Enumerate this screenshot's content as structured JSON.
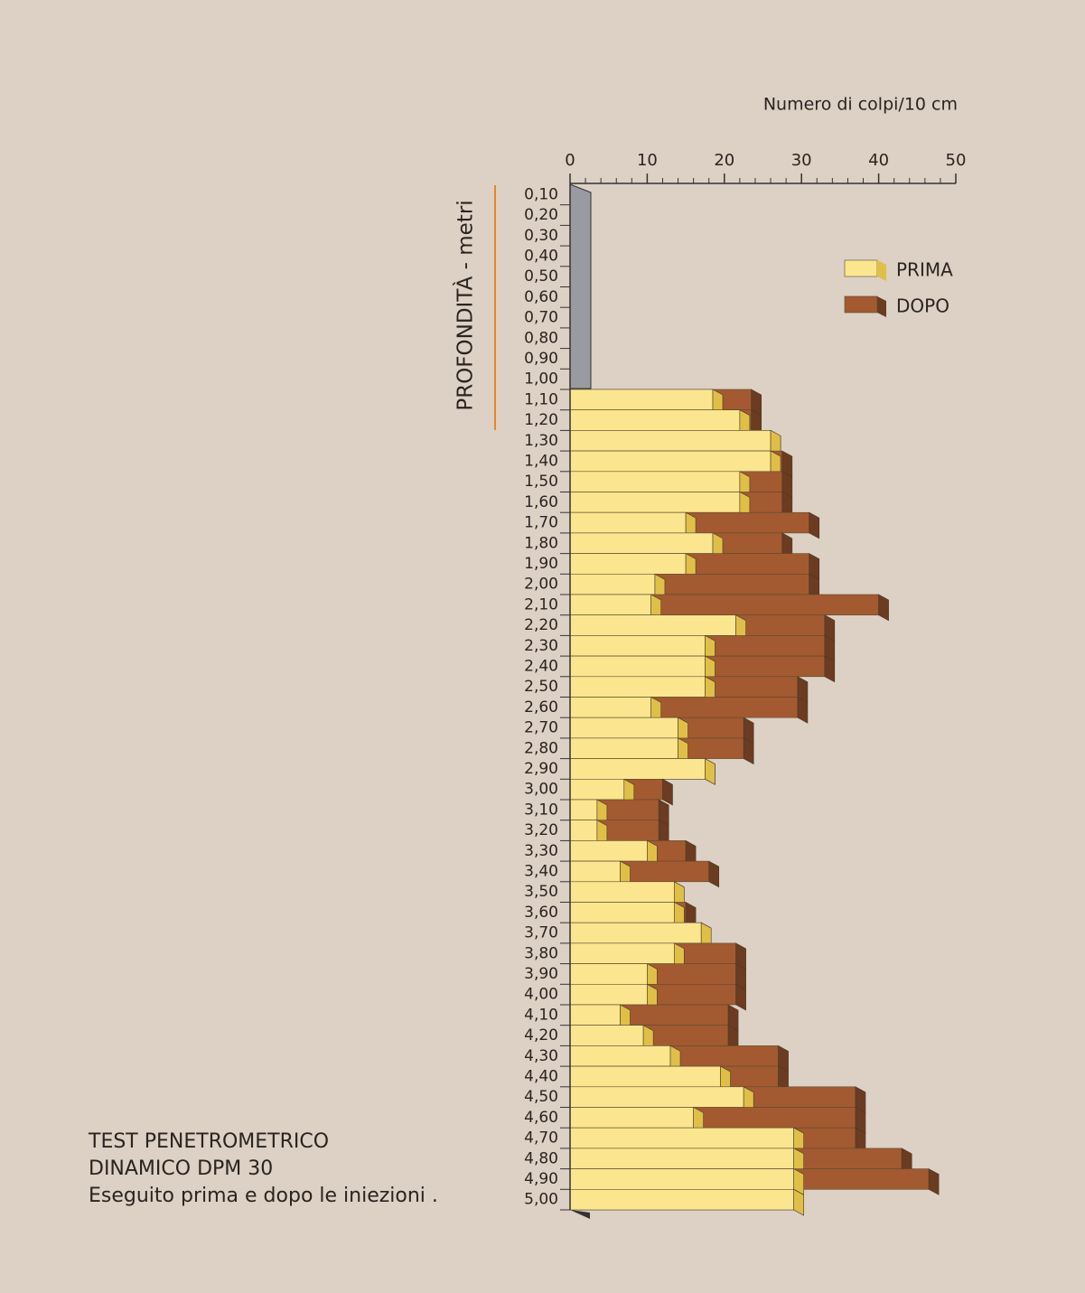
{
  "chart_data": {
    "type": "bar_overlap_horizontal",
    "title_lines": [
      "TEST PENETROMETRICO",
      "DINAMICO DPM 30",
      "Eseguito prima e dopo le iniezioni ."
    ],
    "x_label": "Numero di colpi/10 cm",
    "y_label": "PROFONDITÀ - metri",
    "categories": [
      "0,10",
      "0,20",
      "0,30",
      "0,40",
      "0,50",
      "0,60",
      "0,70",
      "0,80",
      "0,90",
      "1,00",
      "1,10",
      "1,20",
      "1,30",
      "1,40",
      "1,50",
      "1,60",
      "1,70",
      "1,80",
      "1,90",
      "2,00",
      "2,10",
      "2,20",
      "2,30",
      "2,40",
      "2,50",
      "2,60",
      "2,70",
      "2,80",
      "2,90",
      "3,00",
      "3,10",
      "3,20",
      "3,30",
      "3,40",
      "3,50",
      "3,60",
      "3,70",
      "3,80",
      "3,90",
      "4,00",
      "4,10",
      "4,20",
      "4,30",
      "4,40",
      "4,50",
      "4,60",
      "4,70",
      "4,80",
      "4,90",
      "5,00"
    ],
    "series": [
      {
        "name": "DOPO",
        "color": "#a35a30",
        "side_color": "#6b3b22",
        "values": [
          null,
          null,
          null,
          null,
          null,
          null,
          null,
          null,
          null,
          null,
          23.5,
          23.5,
          26,
          27.5,
          27.5,
          27.5,
          31,
          27.5,
          31,
          31,
          40,
          33,
          33,
          33,
          29.5,
          29.5,
          22.5,
          22.5,
          17.5,
          12,
          11.5,
          11.5,
          15,
          18,
          13.5,
          15,
          17,
          21.5,
          21.5,
          21.5,
          20.5,
          20.5,
          27,
          27,
          37,
          37,
          37,
          43,
          46.5,
          29
        ]
      },
      {
        "name": "PRIMA",
        "color": "#fbe68f",
        "side_color": "#dfbf48",
        "values": [
          null,
          null,
          null,
          null,
          null,
          null,
          null,
          null,
          null,
          null,
          18.5,
          22,
          26,
          26,
          22,
          22,
          15,
          18.5,
          15,
          11,
          10.5,
          21.5,
          17.5,
          17.5,
          17.5,
          10.5,
          14,
          14,
          17.5,
          7,
          3.5,
          3.5,
          10,
          6.5,
          13.5,
          13.5,
          17,
          13.5,
          10,
          10,
          6.5,
          9.5,
          13,
          19.5,
          22.5,
          16,
          29,
          29,
          29,
          29
        ]
      }
    ],
    "legend_order": [
      "PRIMA",
      "DOPO"
    ],
    "xlim": [
      0,
      50
    ],
    "xticks": [
      0,
      10,
      20,
      30,
      40,
      50
    ],
    "xticks_minor": [
      2,
      4,
      6,
      8,
      12,
      14,
      16,
      18,
      22,
      24,
      26,
      28,
      32,
      34,
      36,
      38,
      42,
      44,
      46,
      48
    ]
  }
}
